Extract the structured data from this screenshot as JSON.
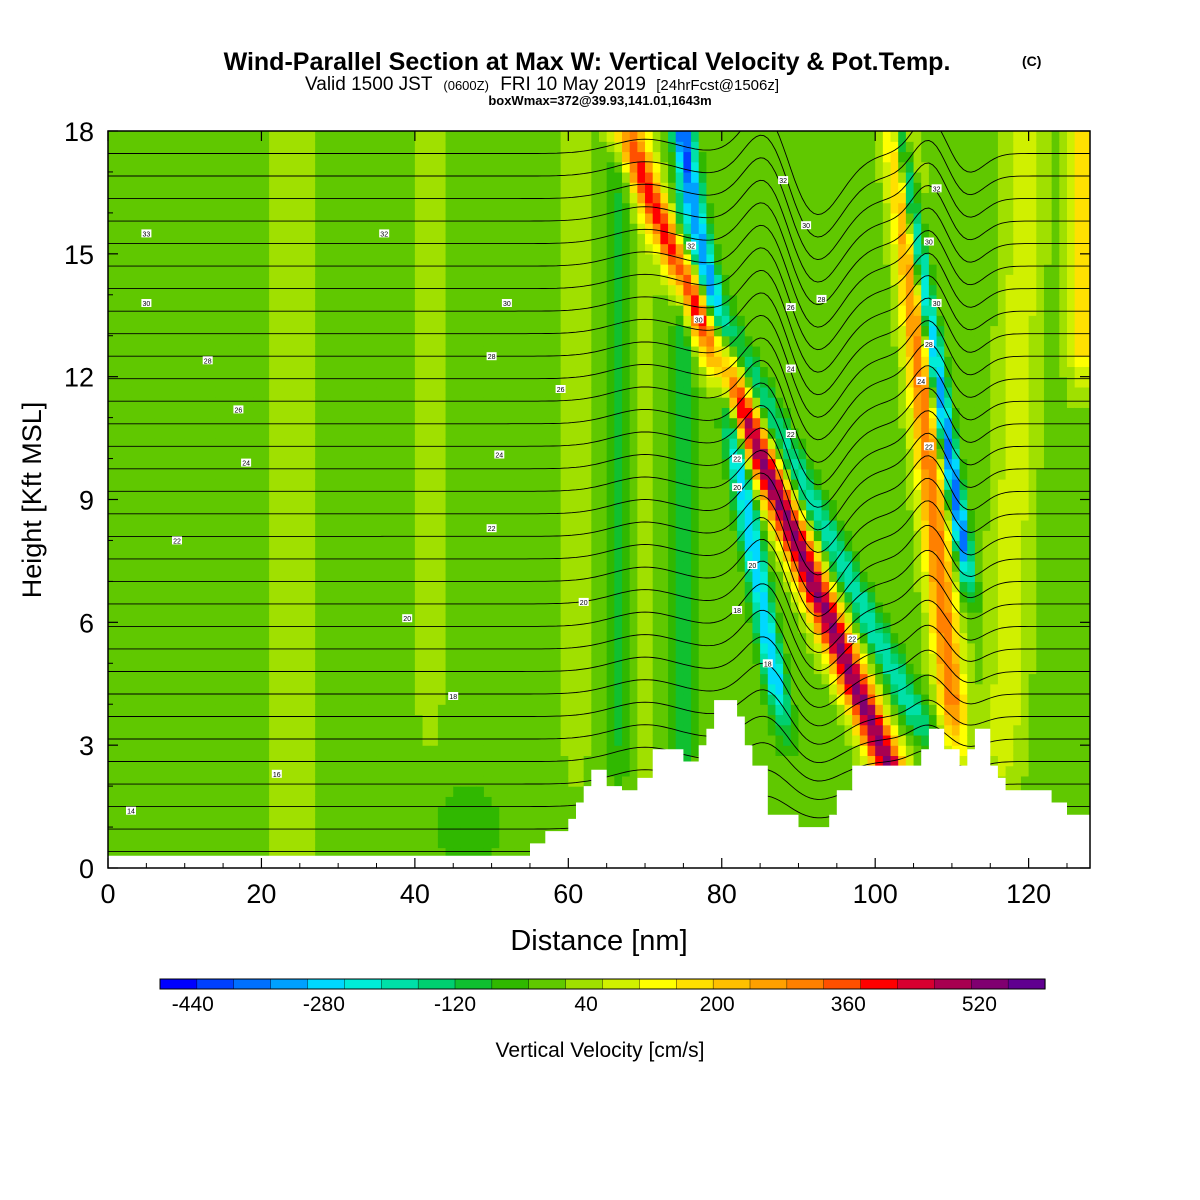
{
  "chart_data": {
    "type": "heatmap",
    "title": "Wind-Parallel Section at Max W: Vertical Velocity & Pot.Temp.",
    "title_mark": "(C)",
    "subtitle_main": "Valid 1500 JST",
    "subtitle_z": "(0600Z)",
    "subtitle_date": "FRI 10 May 2019",
    "subtitle_fcst": "[24hrFcst@1506z]",
    "subtitle_box": "boxWmax=372@39.93,141.01,1643m",
    "xlabel": "Distance [nm]",
    "ylabel": "Height [Kft MSL]",
    "xlim": [
      0,
      128
    ],
    "ylim": [
      0,
      18
    ],
    "xticks": [
      "0",
      "20",
      "40",
      "60",
      "80",
      "100",
      "120"
    ],
    "yticks": [
      "0",
      "3",
      "6",
      "9",
      "12",
      "15",
      "18"
    ],
    "colorbar_label": "Vertical Velocity [cm/s]",
    "colorbar_ticks": [
      "-440",
      "-280",
      "-120",
      "40",
      "200",
      "360",
      "520"
    ],
    "colorbar_range": [
      -480,
      600
    ],
    "colorbar_colors": [
      "#0000ff",
      "#0040ff",
      "#0070ff",
      "#00a0ff",
      "#00d8ff",
      "#00ecd8",
      "#00e0a8",
      "#00d070",
      "#10c030",
      "#30b800",
      "#60c800",
      "#a0e000",
      "#d0f000",
      "#ffff00",
      "#ffe000",
      "#ffc000",
      "#ffa000",
      "#ff8000",
      "#ff5000",
      "#ff0000",
      "#d80030",
      "#a80050",
      "#800070",
      "#600090"
    ],
    "terrain_kft": [
      [
        0,
        0.3
      ],
      [
        55,
        0.3
      ],
      [
        55,
        0.6
      ],
      [
        57,
        0.6
      ],
      [
        57,
        0.9
      ],
      [
        60,
        0.9
      ],
      [
        60,
        1.2
      ],
      [
        61,
        1.2
      ],
      [
        61,
        1.6
      ],
      [
        62,
        1.6
      ],
      [
        62,
        2.0
      ],
      [
        63,
        2.0
      ],
      [
        63,
        2.4
      ],
      [
        65,
        2.4
      ],
      [
        65,
        2.0
      ],
      [
        67,
        2.0
      ],
      [
        67,
        1.9
      ],
      [
        69,
        1.9
      ],
      [
        69,
        2.2
      ],
      [
        71,
        2.2
      ],
      [
        71,
        2.9
      ],
      [
        75,
        2.9
      ],
      [
        75,
        2.6
      ],
      [
        77,
        2.6
      ],
      [
        77,
        3.0
      ],
      [
        78,
        3.0
      ],
      [
        78,
        3.4
      ],
      [
        79,
        3.4
      ],
      [
        79,
        4.1
      ],
      [
        82,
        4.1
      ],
      [
        82,
        3.7
      ],
      [
        83,
        3.7
      ],
      [
        83,
        3.0
      ],
      [
        84,
        3.0
      ],
      [
        84,
        2.5
      ],
      [
        86,
        2.5
      ],
      [
        86,
        1.3
      ],
      [
        90,
        1.3
      ],
      [
        90,
        1.0
      ],
      [
        94,
        1.0
      ],
      [
        94,
        1.3
      ],
      [
        95,
        1.3
      ],
      [
        95,
        1.9
      ],
      [
        97,
        1.9
      ],
      [
        97,
        2.5
      ],
      [
        106,
        2.5
      ],
      [
        106,
        2.9
      ],
      [
        107,
        2.9
      ],
      [
        107,
        3.4
      ],
      [
        109,
        3.4
      ],
      [
        109,
        2.9
      ],
      [
        111,
        2.9
      ],
      [
        111,
        2.5
      ],
      [
        112,
        2.5
      ],
      [
        112,
        2.9
      ],
      [
        113,
        2.9
      ],
      [
        113,
        3.4
      ],
      [
        115,
        3.4
      ],
      [
        115,
        2.5
      ],
      [
        116,
        2.5
      ],
      [
        116,
        2.2
      ],
      [
        117,
        2.2
      ],
      [
        117,
        1.9
      ],
      [
        123,
        1.9
      ],
      [
        123,
        1.6
      ],
      [
        125,
        1.6
      ],
      [
        125,
        1.3
      ],
      [
        128,
        1.3
      ],
      [
        128,
        0
      ]
    ],
    "w_features": [
      {
        "x": 87.5,
        "tilt": -2.2,
        "width": 2.2,
        "amp": 520,
        "z_lo": 2.5,
        "z_hi": 18
      },
      {
        "x": 83.0,
        "tilt": -0.9,
        "width": 1.4,
        "amp": -300,
        "z_lo": 4.5,
        "z_hi": 18
      },
      {
        "x": 91.5,
        "tilt": -2.6,
        "width": 2.0,
        "amp": -200,
        "z_lo": 4,
        "z_hi": 18
      },
      {
        "x": 107.5,
        "tilt": -0.5,
        "width": 1.8,
        "amp": 320,
        "z_lo": 4,
        "z_hi": 18
      },
      {
        "x": 110.5,
        "tilt": -0.8,
        "width": 1.1,
        "amp": -400,
        "z_lo": 8,
        "z_hi": 18
      },
      {
        "x": 118.0,
        "tilt": 0.2,
        "width": 2.5,
        "amp": 90,
        "z_lo": 3,
        "z_hi": 18
      },
      {
        "x": 127.0,
        "tilt": 0.0,
        "width": 1.8,
        "amp": 200,
        "z_lo": 13,
        "z_hi": 18
      },
      {
        "x": 75.0,
        "tilt": 0.0,
        "width": 1.4,
        "amp": -110,
        "z_lo": 3,
        "z_hi": 18
      },
      {
        "x": 70.0,
        "tilt": 0.0,
        "width": 1.3,
        "amp": 40,
        "z_lo": 3,
        "z_hi": 18
      },
      {
        "x": 66.5,
        "tilt": 0.0,
        "width": 1.5,
        "amp": -80,
        "z_lo": 3,
        "z_hi": 18
      },
      {
        "x": 61.0,
        "tilt": 0.0,
        "width": 2.0,
        "amp": 30,
        "z_lo": 3,
        "z_hi": 18
      },
      {
        "x": 24.0,
        "tilt": 0.0,
        "width": 5.0,
        "amp": 20,
        "z_lo": 0,
        "z_hi": 18
      },
      {
        "x": 42.0,
        "tilt": 0.0,
        "width": 3.0,
        "amp": 20,
        "z_lo": 0,
        "z_hi": 18
      }
    ],
    "theta_labels": [
      {
        "text": "33",
        "x": 5,
        "z": 15.5
      },
      {
        "text": "32",
        "x": 36,
        "z": 15.5
      },
      {
        "text": "30",
        "x": 5,
        "z": 13.8
      },
      {
        "text": "30",
        "x": 52,
        "z": 13.8
      },
      {
        "text": "28",
        "x": 13,
        "z": 12.4
      },
      {
        "text": "28",
        "x": 50,
        "z": 12.5
      },
      {
        "text": "26",
        "x": 17,
        "z": 11.2
      },
      {
        "text": "26",
        "x": 59,
        "z": 11.7
      },
      {
        "text": "24",
        "x": 18,
        "z": 9.9
      },
      {
        "text": "24",
        "x": 51,
        "z": 10.1
      },
      {
        "text": "22",
        "x": 9,
        "z": 8.0
      },
      {
        "text": "22",
        "x": 50,
        "z": 8.3
      },
      {
        "text": "20",
        "x": 39,
        "z": 6.1
      },
      {
        "text": "20",
        "x": 62,
        "z": 6.5
      },
      {
        "text": "18",
        "x": 45,
        "z": 4.2
      },
      {
        "text": "16",
        "x": 22,
        "z": 2.3
      },
      {
        "text": "14",
        "x": 3,
        "z": 1.4
      },
      {
        "text": "32",
        "x": 76,
        "z": 15.2
      },
      {
        "text": "30",
        "x": 77,
        "z": 13.4
      },
      {
        "text": "32",
        "x": 88,
        "z": 16.8
      },
      {
        "text": "30",
        "x": 91,
        "z": 15.7
      },
      {
        "text": "28",
        "x": 93,
        "z": 13.9
      },
      {
        "text": "26",
        "x": 89,
        "z": 13.7
      },
      {
        "text": "24",
        "x": 89,
        "z": 12.2
      },
      {
        "text": "22",
        "x": 89,
        "z": 10.6
      },
      {
        "text": "22",
        "x": 82,
        "z": 10.0
      },
      {
        "text": "20",
        "x": 82,
        "z": 9.3
      },
      {
        "text": "20",
        "x": 84,
        "z": 7.4
      },
      {
        "text": "18",
        "x": 82,
        "z": 6.3
      },
      {
        "text": "18",
        "x": 86,
        "z": 5.0
      },
      {
        "text": "22",
        "x": 97,
        "z": 5.6
      },
      {
        "text": "32",
        "x": 108,
        "z": 16.6
      },
      {
        "text": "30",
        "x": 107,
        "z": 15.3
      },
      {
        "text": "30",
        "x": 108,
        "z": 13.8
      },
      {
        "text": "28",
        "x": 107,
        "z": 12.8
      },
      {
        "text": "24",
        "x": 106,
        "z": 11.9
      },
      {
        "text": "22",
        "x": 107,
        "z": 10.3
      }
    ]
  }
}
